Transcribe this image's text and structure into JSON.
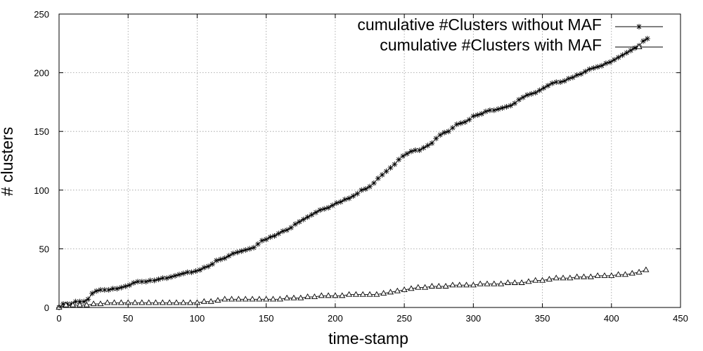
{
  "chart_data": {
    "type": "line",
    "title": "",
    "xlabel": "time-stamp",
    "ylabel": "# clusters",
    "xlim": [
      0,
      450
    ],
    "ylim": [
      0,
      250
    ],
    "xticks": [
      0,
      50,
      100,
      150,
      200,
      250,
      300,
      350,
      400,
      450
    ],
    "yticks": [
      0,
      50,
      100,
      150,
      200,
      250
    ],
    "grid": true,
    "legend_position": "top-right",
    "series": [
      {
        "name": "cumulative #Clusters without MAF",
        "marker": "asterisk",
        "color": "#000000",
        "points": [
          [
            0,
            0
          ],
          [
            3,
            3
          ],
          [
            6,
            3
          ],
          [
            9,
            3
          ],
          [
            12,
            5
          ],
          [
            15,
            5
          ],
          [
            18,
            5
          ],
          [
            21,
            7
          ],
          [
            24,
            12
          ],
          [
            27,
            14
          ],
          [
            30,
            15
          ],
          [
            33,
            15
          ],
          [
            36,
            15
          ],
          [
            39,
            16
          ],
          [
            42,
            16
          ],
          [
            45,
            17
          ],
          [
            48,
            18
          ],
          [
            51,
            19
          ],
          [
            54,
            21
          ],
          [
            57,
            22
          ],
          [
            60,
            22
          ],
          [
            63,
            22
          ],
          [
            66,
            23
          ],
          [
            69,
            23
          ],
          [
            72,
            24
          ],
          [
            75,
            25
          ],
          [
            78,
            25
          ],
          [
            81,
            26
          ],
          [
            84,
            27
          ],
          [
            87,
            28
          ],
          [
            90,
            29
          ],
          [
            93,
            30
          ],
          [
            96,
            30
          ],
          [
            99,
            31
          ],
          [
            102,
            32
          ],
          [
            105,
            34
          ],
          [
            108,
            35
          ],
          [
            111,
            37
          ],
          [
            114,
            40
          ],
          [
            117,
            41
          ],
          [
            120,
            42
          ],
          [
            123,
            44
          ],
          [
            126,
            46
          ],
          [
            129,
            47
          ],
          [
            132,
            48
          ],
          [
            135,
            49
          ],
          [
            138,
            50
          ],
          [
            141,
            51
          ],
          [
            144,
            54
          ],
          [
            147,
            57
          ],
          [
            150,
            58
          ],
          [
            153,
            60
          ],
          [
            156,
            61
          ],
          [
            159,
            63
          ],
          [
            162,
            65
          ],
          [
            165,
            66
          ],
          [
            168,
            68
          ],
          [
            171,
            71
          ],
          [
            174,
            73
          ],
          [
            177,
            75
          ],
          [
            180,
            77
          ],
          [
            183,
            79
          ],
          [
            186,
            81
          ],
          [
            189,
            83
          ],
          [
            192,
            84
          ],
          [
            195,
            85
          ],
          [
            198,
            87
          ],
          [
            201,
            89
          ],
          [
            204,
            90
          ],
          [
            207,
            92
          ],
          [
            210,
            93
          ],
          [
            213,
            95
          ],
          [
            216,
            97
          ],
          [
            219,
            100
          ],
          [
            222,
            101
          ],
          [
            225,
            103
          ],
          [
            228,
            106
          ],
          [
            231,
            110
          ],
          [
            234,
            113
          ],
          [
            237,
            116
          ],
          [
            240,
            119
          ],
          [
            243,
            122
          ],
          [
            246,
            126
          ],
          [
            249,
            129
          ],
          [
            252,
            131
          ],
          [
            255,
            133
          ],
          [
            258,
            134
          ],
          [
            261,
            134
          ],
          [
            264,
            136
          ],
          [
            267,
            138
          ],
          [
            270,
            140
          ],
          [
            273,
            144
          ],
          [
            276,
            147
          ],
          [
            279,
            149
          ],
          [
            282,
            150
          ],
          [
            285,
            153
          ],
          [
            288,
            156
          ],
          [
            291,
            157
          ],
          [
            294,
            158
          ],
          [
            297,
            160
          ],
          [
            300,
            163
          ],
          [
            303,
            164
          ],
          [
            306,
            165
          ],
          [
            309,
            167
          ],
          [
            312,
            168
          ],
          [
            315,
            168
          ],
          [
            318,
            169
          ],
          [
            321,
            170
          ],
          [
            324,
            171
          ],
          [
            327,
            172
          ],
          [
            330,
            174
          ],
          [
            333,
            177
          ],
          [
            336,
            179
          ],
          [
            339,
            181
          ],
          [
            342,
            182
          ],
          [
            345,
            183
          ],
          [
            348,
            185
          ],
          [
            351,
            187
          ],
          [
            354,
            189
          ],
          [
            357,
            191
          ],
          [
            360,
            192
          ],
          [
            363,
            192
          ],
          [
            366,
            193
          ],
          [
            369,
            195
          ],
          [
            372,
            196
          ],
          [
            375,
            198
          ],
          [
            378,
            199
          ],
          [
            381,
            201
          ],
          [
            384,
            203
          ],
          [
            387,
            204
          ],
          [
            390,
            205
          ],
          [
            393,
            206
          ],
          [
            396,
            208
          ],
          [
            399,
            209
          ],
          [
            402,
            211
          ],
          [
            405,
            213
          ],
          [
            408,
            215
          ],
          [
            411,
            217
          ],
          [
            414,
            219
          ],
          [
            417,
            221
          ],
          [
            420,
            223
          ],
          [
            423,
            227
          ],
          [
            426,
            229
          ]
        ]
      },
      {
        "name": "cumulative #Clusters with MAF",
        "marker": "triangle",
        "color": "#000000",
        "points": [
          [
            0,
            0
          ],
          [
            5,
            2
          ],
          [
            10,
            2
          ],
          [
            15,
            2
          ],
          [
            20,
            2
          ],
          [
            25,
            3
          ],
          [
            30,
            3
          ],
          [
            35,
            4
          ],
          [
            40,
            4
          ],
          [
            45,
            4
          ],
          [
            50,
            4
          ],
          [
            55,
            4
          ],
          [
            60,
            4
          ],
          [
            65,
            4
          ],
          [
            70,
            4
          ],
          [
            75,
            4
          ],
          [
            80,
            4
          ],
          [
            85,
            4
          ],
          [
            90,
            4
          ],
          [
            95,
            4
          ],
          [
            100,
            4
          ],
          [
            105,
            5
          ],
          [
            110,
            5
          ],
          [
            115,
            6
          ],
          [
            120,
            7
          ],
          [
            125,
            7
          ],
          [
            130,
            7
          ],
          [
            135,
            7
          ],
          [
            140,
            7
          ],
          [
            145,
            7
          ],
          [
            150,
            7
          ],
          [
            155,
            7
          ],
          [
            160,
            7
          ],
          [
            165,
            8
          ],
          [
            170,
            8
          ],
          [
            175,
            8
          ],
          [
            180,
            9
          ],
          [
            185,
            9
          ],
          [
            190,
            10
          ],
          [
            195,
            10
          ],
          [
            200,
            10
          ],
          [
            205,
            10
          ],
          [
            210,
            11
          ],
          [
            215,
            11
          ],
          [
            220,
            11
          ],
          [
            225,
            11
          ],
          [
            230,
            11
          ],
          [
            235,
            12
          ],
          [
            240,
            13
          ],
          [
            245,
            14
          ],
          [
            250,
            15
          ],
          [
            255,
            16
          ],
          [
            260,
            17
          ],
          [
            265,
            17
          ],
          [
            270,
            18
          ],
          [
            275,
            18
          ],
          [
            280,
            18
          ],
          [
            285,
            19
          ],
          [
            290,
            19
          ],
          [
            295,
            19
          ],
          [
            300,
            19
          ],
          [
            305,
            20
          ],
          [
            310,
            20
          ],
          [
            315,
            20
          ],
          [
            320,
            20
          ],
          [
            325,
            21
          ],
          [
            330,
            21
          ],
          [
            335,
            21
          ],
          [
            340,
            22
          ],
          [
            345,
            23
          ],
          [
            350,
            23
          ],
          [
            355,
            24
          ],
          [
            360,
            25
          ],
          [
            365,
            25
          ],
          [
            370,
            25
          ],
          [
            375,
            26
          ],
          [
            380,
            26
          ],
          [
            385,
            26
          ],
          [
            390,
            27
          ],
          [
            395,
            27
          ],
          [
            400,
            27
          ],
          [
            405,
            28
          ],
          [
            410,
            28
          ],
          [
            415,
            29
          ],
          [
            420,
            30
          ],
          [
            425,
            32
          ]
        ]
      }
    ]
  }
}
